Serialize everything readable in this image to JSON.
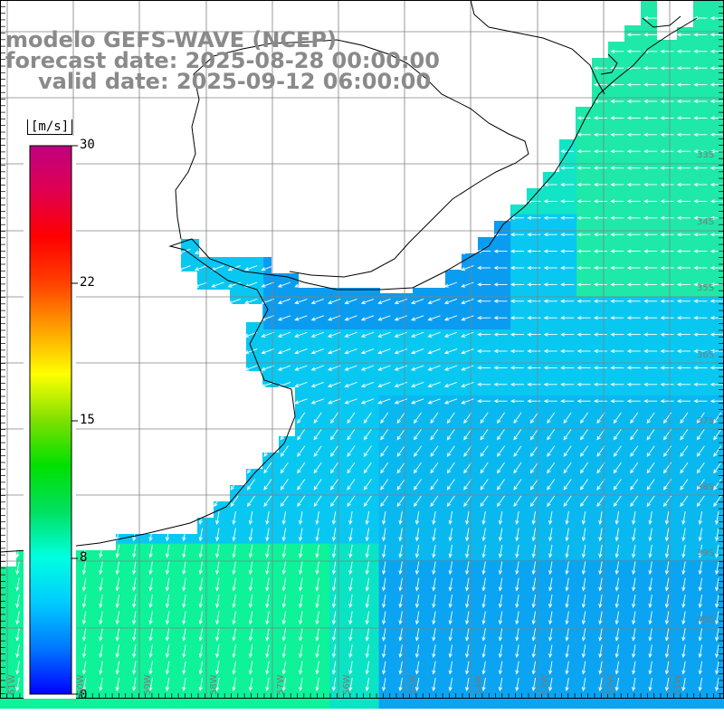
{
  "title": {
    "model": "modelo GEFS-WAVE (NCEP)",
    "forecast": "forecast date: 2025-08-28 00:00:00",
    "valid": "valid date: 2025-09-12 06:00:00"
  },
  "colorbar": {
    "units": "[m/s]",
    "ticks": [
      "30",
      "22",
      "15",
      "8",
      "0"
    ],
    "min": 0,
    "max": 30,
    "colors": [
      "#0000ff",
      "#0077ff",
      "#00ccff",
      "#00ffe0",
      "#00e060",
      "#00e000",
      "#7fe000",
      "#ffff00",
      "#ffa000",
      "#ff4000",
      "#ff0000",
      "#e00050",
      "#c00080"
    ]
  },
  "map": {
    "land_color": "#ffffff",
    "grid_color": "#808080",
    "lat_labels": [
      "33S",
      "34S",
      "35S",
      "36S",
      "37S",
      "38S",
      "39S",
      "40S"
    ],
    "lon_labels": [
      "61W",
      "60W",
      "59W",
      "58W",
      "57W",
      "56W",
      "55W",
      "54W",
      "53W",
      "52W",
      "51W"
    ]
  }
}
